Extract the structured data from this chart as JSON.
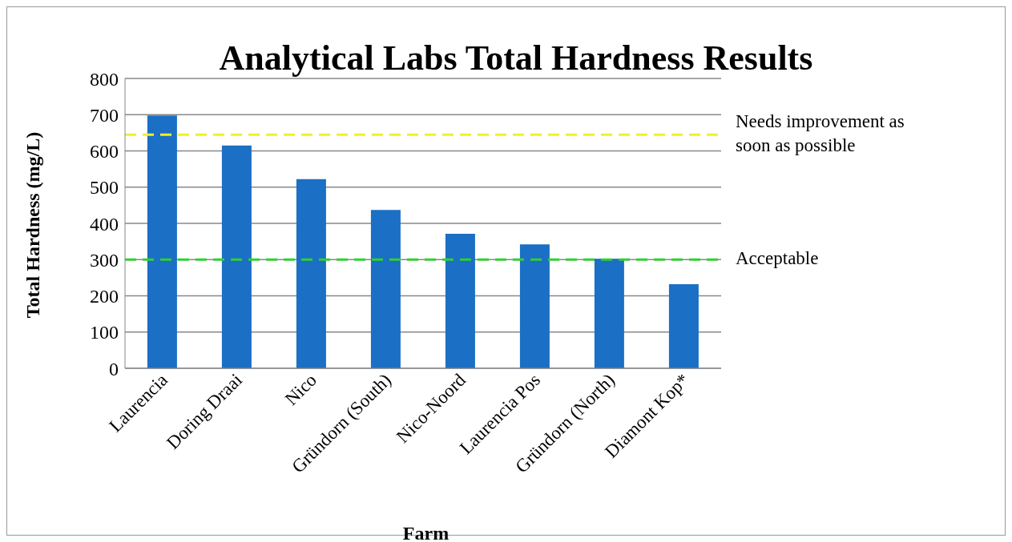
{
  "chart_data": {
    "type": "bar",
    "title": "Analytical Labs Total Hardness Results",
    "xlabel": "Farm",
    "ylabel": "Total Hardness (mg/L)",
    "categories": [
      "Laurencia",
      "Doring Draai",
      "Nico",
      "Gründorn (South)",
      "Nico-Noord",
      "Laurencia Pos",
      "Gründorn (North)",
      "Diamont Kop*"
    ],
    "values": [
      698,
      615,
      522,
      437,
      371,
      342,
      302,
      232
    ],
    "color": "#1b6fc4",
    "ylim": [
      0,
      800
    ],
    "yticks": [
      0,
      100,
      200,
      300,
      400,
      500,
      600,
      700,
      800
    ],
    "grid": "y",
    "legend": false,
    "ref_lines": [
      {
        "axis": "y",
        "value": 645,
        "label": "Needs improvement as soon as possible",
        "color": "#f2ef2a",
        "line_style": "dashed"
      },
      {
        "axis": "y",
        "value": 300,
        "label": "Acceptable",
        "color": "#2fd12f",
        "line_style": "dashed"
      }
    ]
  }
}
